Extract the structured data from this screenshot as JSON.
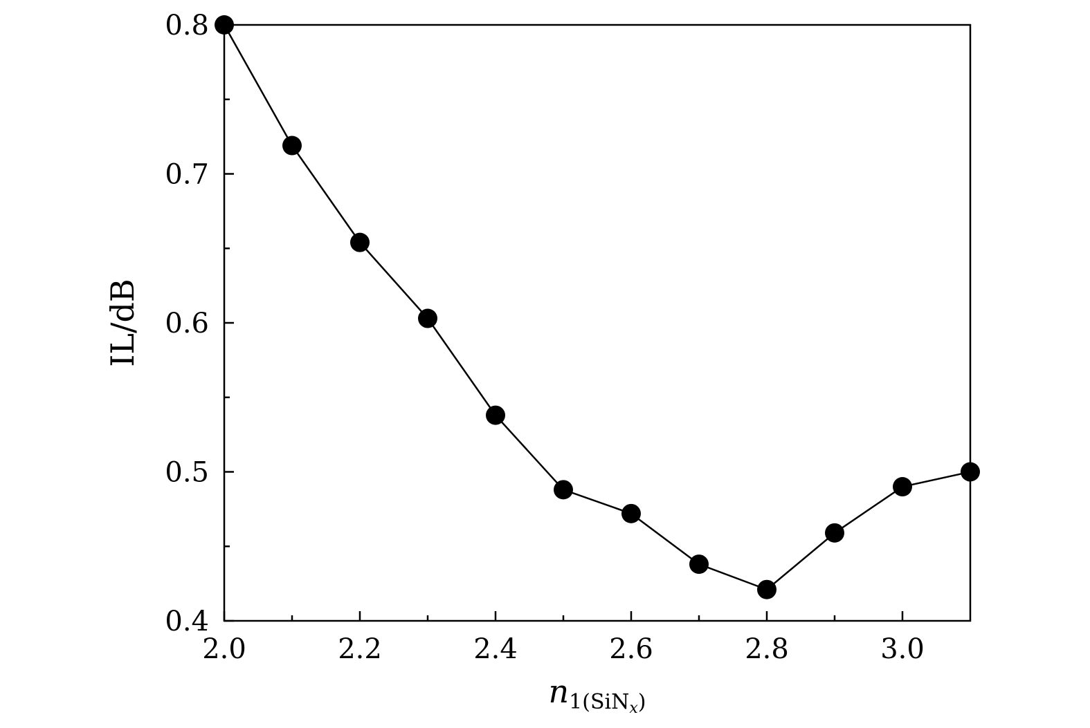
{
  "chart_data": {
    "type": "line",
    "x": [
      2.0,
      2.1,
      2.2,
      2.3,
      2.4,
      2.5,
      2.6,
      2.7,
      2.8,
      2.9,
      3.0,
      3.1
    ],
    "series": [
      {
        "values": [
          0.8,
          0.719,
          0.654,
          0.603,
          0.538,
          0.488,
          0.472,
          0.438,
          0.421,
          0.459,
          0.49,
          0.5
        ]
      }
    ],
    "xlim": [
      2.0,
      3.1
    ],
    "ylim": [
      0.4,
      0.8
    ],
    "xticks": [
      2.0,
      2.2,
      2.4,
      2.6,
      2.8,
      3.0
    ],
    "xtick_labels": [
      "2.0",
      "2.2",
      "2.4",
      "2.6",
      "2.8",
      "3.0"
    ],
    "xminor_ticks": [
      2.1,
      2.3,
      2.5,
      2.7,
      2.9
    ],
    "yticks": [
      0.4,
      0.5,
      0.6,
      0.7,
      0.8
    ],
    "ytick_labels": [
      "0.4",
      "0.5",
      "0.6",
      "0.7",
      "0.8"
    ],
    "yminor_ticks": [
      0.45,
      0.55,
      0.65,
      0.75
    ],
    "ylabel": "IL/dB",
    "xlabel": {
      "main": "n",
      "subscript": "1(SiN",
      "subsubscript": "x",
      "suffix": ")"
    },
    "marker": "filled-circle",
    "line_color": "#000000",
    "grid": false
  }
}
